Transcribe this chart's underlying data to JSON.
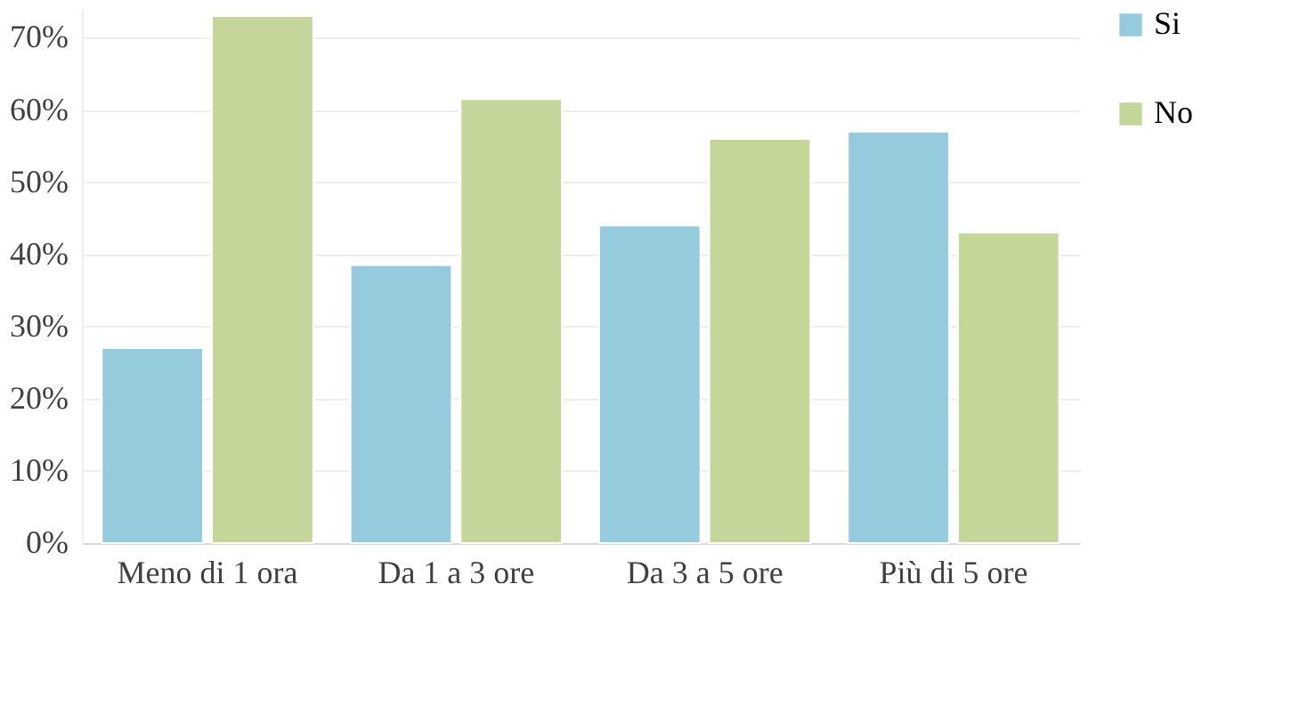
{
  "chart_data": {
    "type": "bar",
    "categories": [
      "Meno di 1 ora",
      "Da 1 a 3 ore",
      "Da 3 a 5 ore",
      "Più di 5 ore"
    ],
    "series": [
      {
        "name": "Si",
        "color": "#95cbdc",
        "values": [
          27,
          38.5,
          44,
          57
        ]
      },
      {
        "name": "No",
        "color": "#c5d69b",
        "values": [
          73,
          61.5,
          56,
          43
        ]
      }
    ],
    "ylim": [
      0,
      74
    ],
    "yticks": [
      {
        "value": 0,
        "label": "0%"
      },
      {
        "value": 10,
        "label": "10%"
      },
      {
        "value": 20,
        "label": "20%"
      },
      {
        "value": 30,
        "label": "30%"
      },
      {
        "value": 40,
        "label": "40%"
      },
      {
        "value": 50,
        "label": "50%"
      },
      {
        "value": 60,
        "label": "60%"
      },
      {
        "value": 70,
        "label": "70%"
      }
    ],
    "grid": "y",
    "legend": "right"
  }
}
